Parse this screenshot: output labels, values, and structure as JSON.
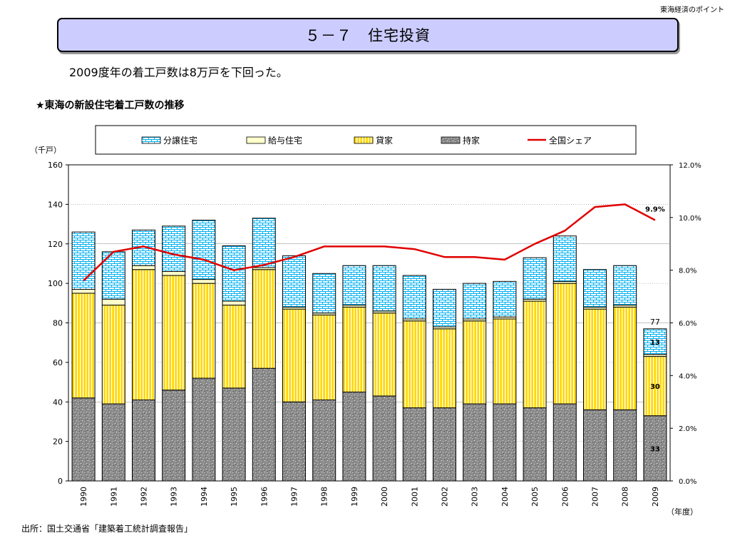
{
  "header": {
    "corner_label": "東海経済のポイント",
    "title": "５－７　住宅投資"
  },
  "lead": "2009度年の着工戸数は8万戸を下回った。",
  "chart_heading": "★東海の新設住宅着工戸数の推移",
  "source": "出所：国土交通省「建築着工統計調査報告」",
  "colors": {
    "buying": "#00b0f0",
    "company": "#ffffcc",
    "rental": "#ffd700",
    "owner": "#808080",
    "share": "#e00000"
  },
  "chart_data": {
    "type": "bar",
    "stacked": true,
    "categories": [
      "1990",
      "1991",
      "1992",
      "1993",
      "1994",
      "1995",
      "1996",
      "1997",
      "1998",
      "1999",
      "2000",
      "2001",
      "2002",
      "2003",
      "2004",
      "2005",
      "2006",
      "2007",
      "2008",
      "2009"
    ],
    "ylabel": "（千戸）",
    "xlabel": "（年度）",
    "ylim": [
      0,
      160
    ],
    "yticks": [
      "0",
      "20",
      "40",
      "60",
      "80",
      "100",
      "120",
      "140",
      "160"
    ],
    "y2lim": [
      0,
      12
    ],
    "y2ticks": [
      "0.0%",
      "2.0%",
      "4.0%",
      "6.0%",
      "8.0%",
      "10.0%",
      "12.0%"
    ],
    "legend_position": "top",
    "series": [
      {
        "name": "持家",
        "key": "owner",
        "values": [
          42,
          39,
          41,
          46,
          52,
          47,
          57,
          40,
          41,
          45,
          43,
          37,
          37,
          39,
          39,
          37,
          39,
          36,
          36,
          33
        ]
      },
      {
        "name": "貸家",
        "key": "rental",
        "values": [
          53,
          50,
          66,
          58,
          48,
          42,
          50,
          47,
          43,
          43,
          42,
          44,
          40,
          42,
          43,
          54,
          61,
          51,
          52,
          30
        ]
      },
      {
        "name": "給与住宅",
        "key": "company",
        "values": [
          2,
          3,
          2,
          2,
          2,
          2,
          1,
          1,
          1,
          1,
          1,
          1,
          1,
          1,
          1,
          1,
          1,
          1,
          1,
          1
        ]
      },
      {
        "name": "分譲住宅",
        "key": "buying",
        "values": [
          29,
          24,
          18,
          23,
          30,
          28,
          25,
          26,
          20,
          20,
          23,
          22,
          19,
          18,
          18,
          21,
          23,
          19,
          20,
          13
        ]
      }
    ],
    "line_series": {
      "name": "全国シェア",
      "key": "share",
      "values": [
        7.6,
        8.7,
        8.9,
        8.6,
        8.4,
        8.0,
        8.2,
        8.5,
        8.9,
        8.9,
        8.9,
        8.8,
        8.5,
        8.5,
        8.4,
        9.0,
        9.5,
        10.4,
        10.5,
        9.9
      ]
    },
    "annotations": {
      "total_2009": "77",
      "buying_2009": "13",
      "rental_2009": "30",
      "owner_2009": "33",
      "share_2009": "9.9%"
    }
  }
}
